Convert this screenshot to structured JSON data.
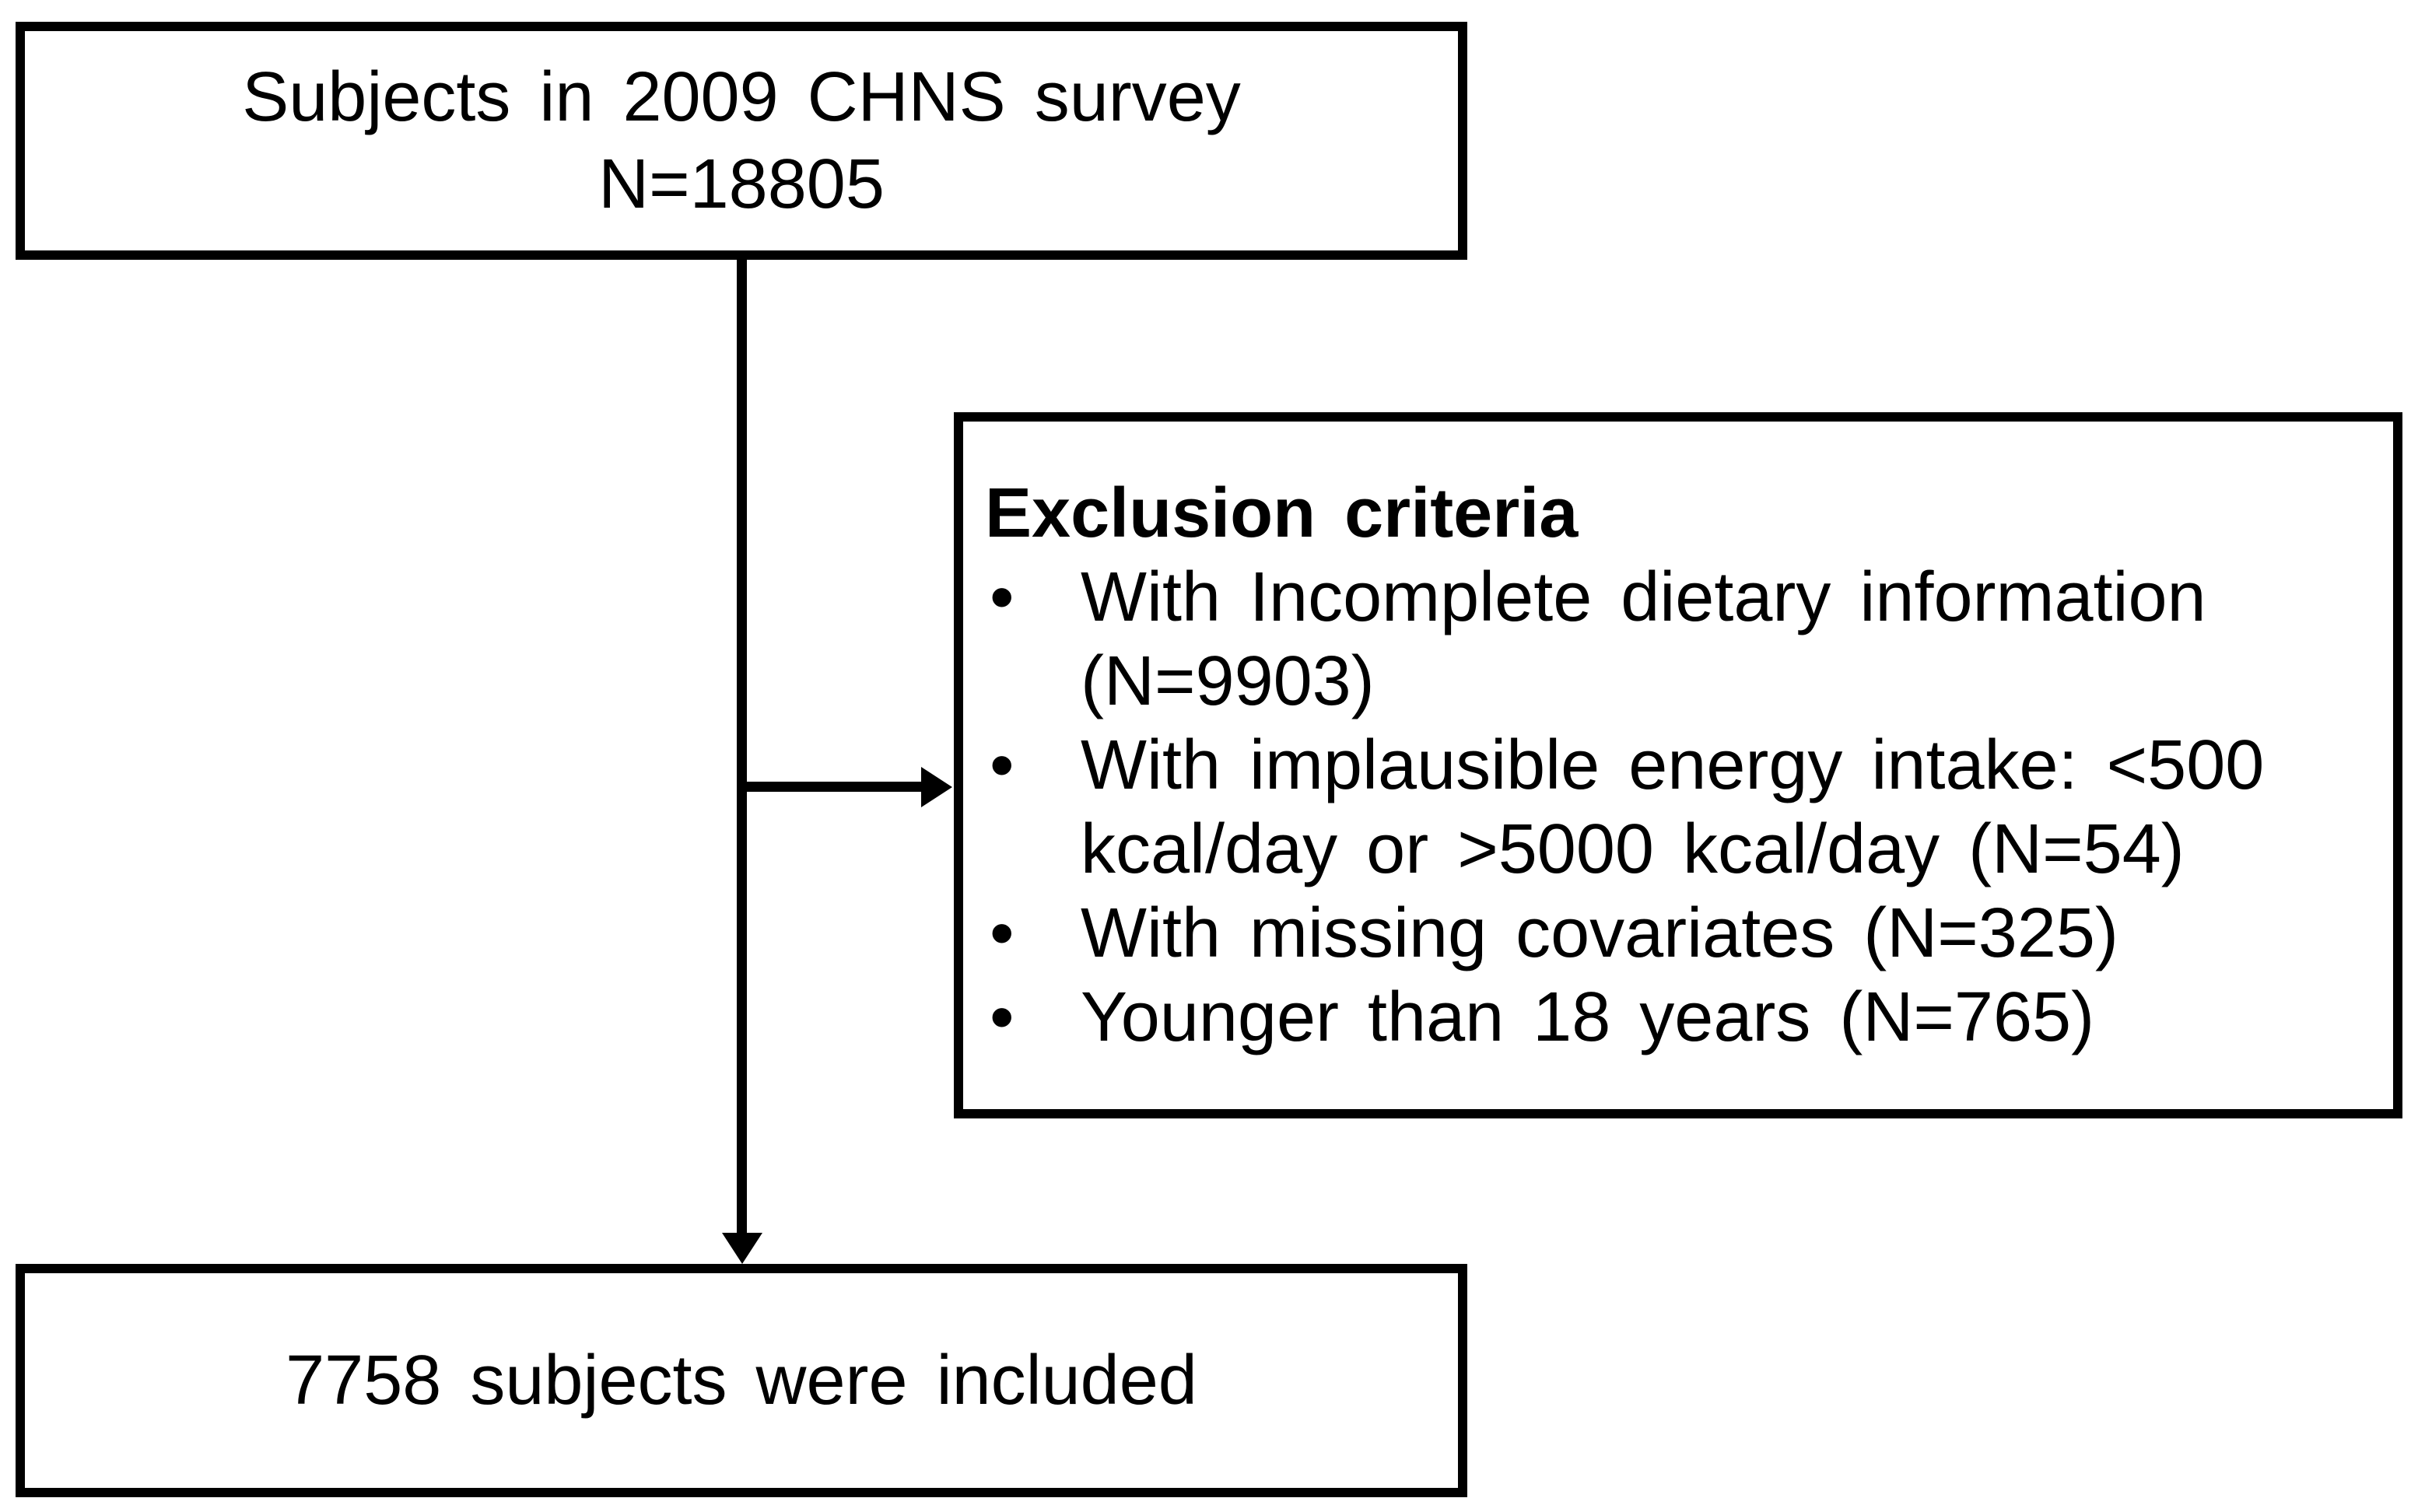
{
  "top_box": {
    "line1": "Subjects in 2009 CHNS survey",
    "line2": "N=18805"
  },
  "exclusion_box": {
    "title": "Exclusion criteria",
    "items": [
      "With Incomplete dietary information (N=9903)",
      "With implausible energy intake: <500 kcal/day or >5000 kcal/day (N=54)",
      "With missing covariates (N=325)",
      "Younger than 18 years (N=765)"
    ]
  },
  "bottom_box": {
    "label": "7758 subjects were included"
  },
  "colors": {
    "line": "#000000",
    "background": "#ffffff",
    "text": "#000000"
  }
}
